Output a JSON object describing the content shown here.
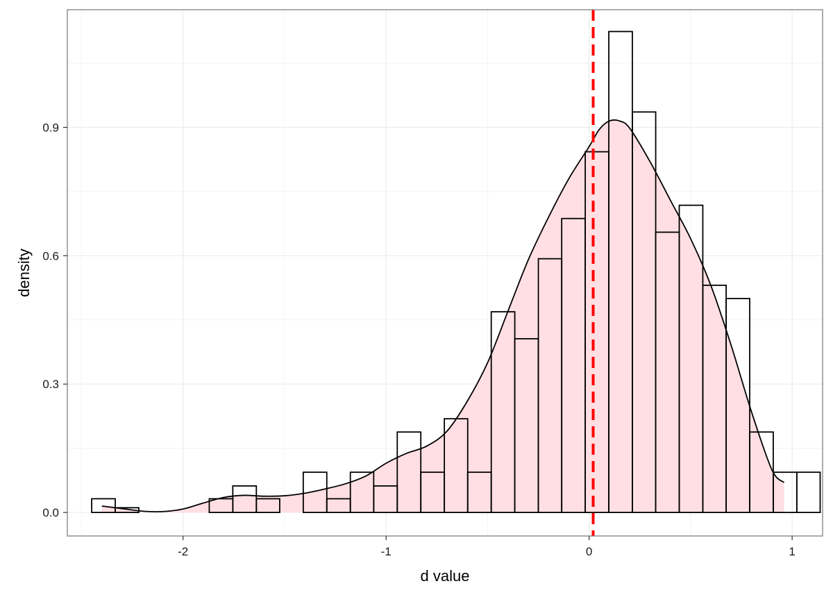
{
  "chart_data": {
    "type": "histogram",
    "title": "",
    "xlabel": "d value",
    "ylabel": "density",
    "xlim": [
      -2.57,
      1.15
    ],
    "ylim": [
      -0.055,
      1.175
    ],
    "x_ticks": [
      -2,
      -1,
      0,
      1
    ],
    "x_tick_labels": [
      "-2",
      "-1",
      "0",
      "1"
    ],
    "y_ticks": [
      0.0,
      0.3,
      0.6,
      0.9
    ],
    "y_tick_labels": [
      "0.0",
      "0.3",
      "0.6",
      "0.9"
    ],
    "grid": true,
    "bin_width": 0.1157,
    "histogram": [
      {
        "x0": -2.45,
        "x1": -2.334,
        "density": 0.032
      },
      {
        "x0": -2.334,
        "x1": -2.218,
        "density": 0.011
      },
      {
        "x0": -1.871,
        "x1": -1.755,
        "density": 0.032
      },
      {
        "x0": -1.755,
        "x1": -1.639,
        "density": 0.062
      },
      {
        "x0": -1.639,
        "x1": -1.524,
        "density": 0.032
      },
      {
        "x0": -1.408,
        "x1": -1.292,
        "density": 0.094
      },
      {
        "x0": -1.292,
        "x1": -1.176,
        "density": 0.032
      },
      {
        "x0": -1.176,
        "x1": -1.061,
        "density": 0.094
      },
      {
        "x0": -1.061,
        "x1": -0.945,
        "density": 0.062
      },
      {
        "x0": -0.945,
        "x1": -0.829,
        "density": 0.188
      },
      {
        "x0": -0.829,
        "x1": -0.713,
        "density": 0.094
      },
      {
        "x0": -0.713,
        "x1": -0.598,
        "density": 0.219
      },
      {
        "x0": -0.598,
        "x1": -0.482,
        "density": 0.094
      },
      {
        "x0": -0.482,
        "x1": -0.366,
        "density": 0.469
      },
      {
        "x0": -0.366,
        "x1": -0.25,
        "density": 0.406
      },
      {
        "x0": -0.25,
        "x1": -0.135,
        "density": 0.593
      },
      {
        "x0": -0.135,
        "x1": -0.019,
        "density": 0.687
      },
      {
        "x0": -0.019,
        "x1": 0.097,
        "density": 0.843
      },
      {
        "x0": 0.097,
        "x1": 0.213,
        "density": 1.124
      },
      {
        "x0": 0.213,
        "x1": 0.328,
        "density": 0.936
      },
      {
        "x0": 0.328,
        "x1": 0.444,
        "density": 0.655
      },
      {
        "x0": 0.444,
        "x1": 0.56,
        "density": 0.718
      },
      {
        "x0": 0.56,
        "x1": 0.675,
        "density": 0.531
      },
      {
        "x0": 0.675,
        "x1": 0.791,
        "density": 0.5
      },
      {
        "x0": 0.791,
        "x1": 0.907,
        "density": 0.188
      },
      {
        "x0": 0.907,
        "x1": 1.023,
        "density": 0.094
      },
      {
        "x0": 1.023,
        "x1": 1.138,
        "density": 0.094
      }
    ],
    "density_curve": {
      "x": [
        -2.4,
        -2.3,
        -2.2,
        -2.1,
        -2.0,
        -1.9,
        -1.8,
        -1.7,
        -1.6,
        -1.5,
        -1.4,
        -1.3,
        -1.2,
        -1.1,
        -1.0,
        -0.9,
        -0.8,
        -0.7,
        -0.6,
        -0.5,
        -0.4,
        -0.3,
        -0.2,
        -0.1,
        0.0,
        0.05,
        0.1,
        0.15,
        0.2,
        0.3,
        0.4,
        0.5,
        0.6,
        0.7,
        0.8,
        0.9,
        0.96
      ],
      "y": [
        0.015,
        0.009,
        0.003,
        0.002,
        0.008,
        0.022,
        0.035,
        0.04,
        0.038,
        0.039,
        0.045,
        0.055,
        0.067,
        0.085,
        0.115,
        0.138,
        0.155,
        0.19,
        0.26,
        0.35,
        0.47,
        0.59,
        0.69,
        0.78,
        0.855,
        0.895,
        0.915,
        0.915,
        0.898,
        0.82,
        0.73,
        0.64,
        0.53,
        0.39,
        0.235,
        0.1,
        0.07
      ]
    },
    "reference_line": {
      "x": 0.02,
      "style": "dashed",
      "color": "#ff0000"
    },
    "colors": {
      "density_fill": "#ffdfe3",
      "bar_stroke": "#000000",
      "grid": "#ebebeb",
      "panel_border": "#7f7f7f"
    }
  }
}
